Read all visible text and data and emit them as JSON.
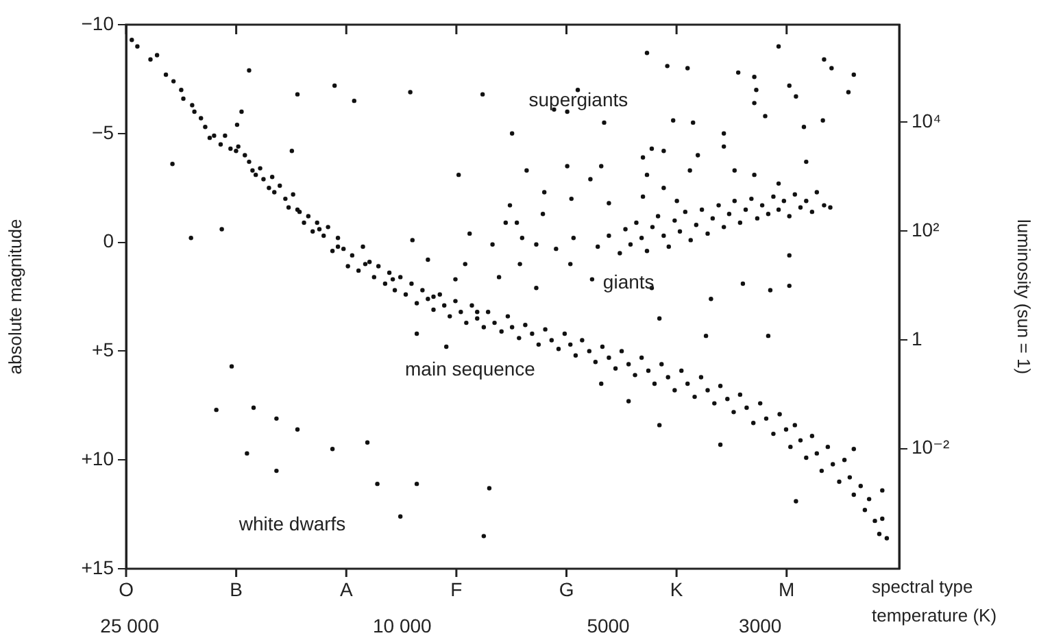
{
  "chart_data": {
    "type": "scatter",
    "xlabel": "temperature (K)",
    "ylabel": "luminosity (sun = 1)",
    "y2label": "absolute magnitude",
    "xlim": [
      25300,
      1880
    ],
    "xticks": [
      {
        "value": 25000,
        "label": "25 000"
      },
      {
        "value": 10000,
        "label": "10 000"
      },
      5000,
      3000
    ],
    "log": "xy",
    "ylim": [
      6.2e-05,
      620000
    ],
    "yticks": [
      {
        "value": 0.01,
        "label": "10⁻²"
      },
      1,
      {
        "value": 100,
        "label": "10²"
      },
      {
        "value": 10000,
        "label": "10⁴"
      }
    ],
    "y2lim": [
      15,
      -10
    ],
    "y2ticks": [
      {
        "value": -10,
        "label": "−10"
      },
      {
        "value": -5,
        "label": "−5"
      },
      0,
      {
        "value": 5,
        "label": "+5"
      },
      {
        "value": 10,
        "label": "+10"
      },
      {
        "value": 15,
        "label": "+15"
      }
    ],
    "marker": "circle",
    "annotations": [
      "supergiants",
      "giants",
      "main sequence",
      "white dwarfs",
      "O",
      "B",
      "A",
      "F",
      "G",
      "K",
      "M",
      "spectral type"
    ],
    "series": [
      {
        "color": "#111111",
        "axis": "y2",
        "x": [
          24820,
          23310,
          21570,
          20260,
          19100,
          17480,
          16360,
          15370,
          14220,
          13210,
          12410,
          11320,
          10320,
          9000,
          7770,
          24360,
          22800,
          22130,
          21020,
          20870,
          20110,
          19670,
          19390,
          18820,
          18410,
          18140,
          17810,
          17350,
          16970,
          16730,
          16540,
          16120,
          15940,
          15650,
          15480,
          15090,
          14810,
          14650,
          14430,
          14120,
          13910,
          13710,
          13510,
          13310,
          13020,
          12830,
          12640,
          12410,
          12180,
          12000,
          11830,
          11580,
          11410,
          11160,
          10990,
          10830,
          10590,
          10440,
          10250,
          10060,
          9880,
          9690,
          9520,
          9340,
          9170,
          9000,
          8810,
          8680,
          8520,
          8360,
          8210,
          8060,
          7910,
          7770,
          7600,
          7490,
          7330,
          7160,
          7010,
          6910,
          6750,
          6610,
          6460,
          6320,
          6180,
          6050,
          5910,
          5790,
          5680,
          5580,
          5460,
          5330,
          5220,
          5100,
          4990,
          4880,
          4780,
          4670,
          4570,
          4470,
          4370,
          4280,
          4180,
          4090,
          4000,
          3910,
          3830,
          3740,
          3660,
          3580,
          3500,
          3430,
          3350,
          3280,
          3210,
          3140,
          3070,
          3000,
          2940,
          2870,
          2810,
          2750,
          2710,
          2670,
          2620,
          2570,
          2520,
          2480,
          2440,
          2390,
          2350,
          2300,
          2260,
          2220,
          2190,
          2140,
          2110,
          2080,
          2040,
          2010,
          1990,
          1960,
          5120,
          4670,
          4210,
          3430,
          2660,
          1990,
          2190,
          9520,
          8620,
          5180,
          4990,
          4810,
          4720,
          4640,
          4550,
          4470,
          4390,
          4310,
          4230,
          4150,
          4080,
          4000,
          3930,
          3860,
          3790,
          3720,
          3650,
          3580,
          3520,
          3450,
          3390,
          3330,
          3270,
          3210,
          3150,
          3090,
          3030,
          2980,
          2920,
          2870,
          2820,
          2770,
          2720,
          2670,
          2620,
          2570,
          2520,
          2480,
          2420,
          2370,
          6800,
          6230,
          4990,
          4450,
          6680,
          6370,
          5620,
          5960,
          6730,
          5680,
          5280,
          4320,
          3180,
          2900,
          2720,
          2720,
          3540,
          6370,
          4210,
          2920,
          3600,
          18340,
          21650,
          20340,
          9660,
          9170,
          7970,
          7380,
          7060,
          8090,
          7220,
          8360,
          16730,
          14220,
          12550,
          11750,
          9730,
          7630,
          6910,
          8270,
          6960,
          14490,
          17160,
          17420,
          4390,
          4100,
          3830,
          3230,
          3060,
          2820,
          2420,
          2360,
          2190,
          2230,
          2720,
          2660,
          3040,
          3060,
          5540,
          6000,
          5740,
          5070,
          4020,
          3760,
          2950,
          2590,
          2430,
          3390,
          4320,
          4150,
          4450,
          3700,
          3390,
          6580,
          5740,
          5310,
          5120,
          4390,
          3800,
          3270,
          3060,
          2570,
          4150,
          2820,
          6200,
          5660,
          3970,
          17740,
          18680,
          16480,
          15260,
          14220,
          16850,
          15260,
          12640,
          11240,
          10870,
          9520,
          10060,
          7600,
          7460
        ],
        "values": [
          -9.3,
          -8.4,
          -7.4,
          -6.3,
          -4.8,
          -4.2,
          -3.1,
          -2.3,
          -1.5,
          -0.6,
          0.2,
          1.0,
          1.7,
          2.5,
          3.2,
          -9.0,
          -8.6,
          -7.7,
          -7.0,
          -6.6,
          -6.0,
          -5.7,
          -5.3,
          -4.9,
          -4.5,
          -4.9,
          -4.3,
          -4.4,
          -4.0,
          -3.7,
          -3.3,
          -3.4,
          -2.9,
          -2.5,
          -3.0,
          -2.6,
          -2.0,
          -1.6,
          -2.2,
          -1.4,
          -0.9,
          -1.2,
          -0.5,
          -0.9,
          -0.3,
          -0.7,
          0.4,
          -0.2,
          0.3,
          1.1,
          0.6,
          1.3,
          0.2,
          0.9,
          1.6,
          1.1,
          1.9,
          1.4,
          2.2,
          1.6,
          2.4,
          1.9,
          2.8,
          2.2,
          2.6,
          3.1,
          2.4,
          2.9,
          3.4,
          2.7,
          3.2,
          3.7,
          2.9,
          3.5,
          3.9,
          3.2,
          3.7,
          4.1,
          3.4,
          3.9,
          4.4,
          3.8,
          4.2,
          4.7,
          4.0,
          4.5,
          4.9,
          4.2,
          4.7,
          5.2,
          4.5,
          5.0,
          5.5,
          4.8,
          5.3,
          5.8,
          5.0,
          5.6,
          6.1,
          5.3,
          5.9,
          6.5,
          5.6,
          6.2,
          6.8,
          5.9,
          6.5,
          7.1,
          6.2,
          6.8,
          7.4,
          6.6,
          7.2,
          7.8,
          7.0,
          7.6,
          8.3,
          7.4,
          8.1,
          8.8,
          7.9,
          8.6,
          9.4,
          8.4,
          9.1,
          9.9,
          8.9,
          9.7,
          10.5,
          9.4,
          10.2,
          11.0,
          10.0,
          10.8,
          11.6,
          11.2,
          12.3,
          11.8,
          12.8,
          13.4,
          12.7,
          13.6,
          6.5,
          7.3,
          8.4,
          9.3,
          11.9,
          11.4,
          9.5,
          4.2,
          4.8,
          0.2,
          -0.3,
          0.5,
          -0.6,
          0.1,
          -0.9,
          -0.2,
          0.4,
          -0.7,
          -1.2,
          -0.3,
          0.2,
          -1.0,
          -0.5,
          -1.4,
          -0.1,
          -0.8,
          -1.5,
          -0.4,
          -1.1,
          -1.7,
          -0.7,
          -1.3,
          -1.9,
          -0.9,
          -1.5,
          -2.0,
          -1.1,
          -1.7,
          -1.3,
          -2.1,
          -1.5,
          -1.9,
          -1.2,
          -2.2,
          -1.6,
          -1.9,
          -1.4,
          -2.3,
          -1.7,
          -1.6,
          -0.9,
          -1.3,
          -1.8,
          -2.1,
          -0.2,
          0.1,
          -0.2,
          0.3,
          1.0,
          1.0,
          1.7,
          2.1,
          1.9,
          2.2,
          0.6,
          2.0,
          2.6,
          2.1,
          3.5,
          4.3,
          4.3,
          -0.6,
          -3.6,
          -0.2,
          -0.1,
          0.8,
          -0.4,
          0.1,
          -0.9,
          1.0,
          1.6,
          1.7,
          -7.9,
          -6.8,
          -7.2,
          -6.5,
          -6.9,
          -6.8,
          -5.0,
          -3.1,
          -1.7,
          -4.2,
          -6.0,
          -5.4,
          -8.7,
          -8.1,
          -8.0,
          -7.8,
          -7.6,
          -9.0,
          -8.4,
          -8.0,
          -7.7,
          -6.9,
          -7.2,
          -6.7,
          -7.0,
          -6.4,
          -7.0,
          -6.1,
          -6.0,
          -5.5,
          -5.6,
          -5.5,
          -5.8,
          -5.3,
          -5.6,
          -5.0,
          -4.3,
          -4.2,
          -3.9,
          -4.0,
          -4.4,
          -3.3,
          -3.5,
          -2.9,
          -3.5,
          -3.1,
          -3.3,
          -3.3,
          -3.1,
          -3.7,
          -2.5,
          -2.7,
          -2.3,
          -2.0,
          -1.9,
          5.7,
          7.7,
          7.6,
          8.1,
          8.6,
          9.7,
          10.5,
          9.5,
          9.2,
          11.1,
          11.1,
          12.6,
          13.5,
          11.3
        ]
      }
    ]
  }
}
